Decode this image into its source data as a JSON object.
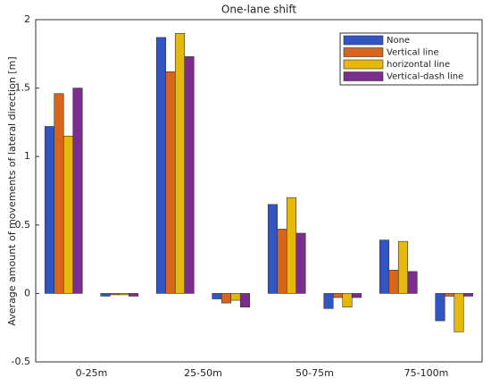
{
  "chart_data": {
    "type": "bar",
    "title": "One-lane shift",
    "y_label": "Average amount of movements of lateral direction [m]",
    "categories": [
      "0-25m",
      null,
      "25-50m",
      null,
      "50-75m",
      null,
      "75-100m",
      null
    ],
    "series": [
      {
        "name": "None",
        "color": "#3355c4",
        "values": [
          1.22,
          -0.02,
          1.87,
          -0.04,
          0.65,
          -0.11,
          0.39,
          -0.2
        ]
      },
      {
        "name": "Vertical line",
        "color": "#d9651b",
        "values": [
          1.46,
          -0.01,
          1.62,
          -0.07,
          0.47,
          -0.03,
          0.17,
          -0.02
        ]
      },
      {
        "name": "horizontal line",
        "color": "#e6b80c",
        "values": [
          1.15,
          -0.01,
          1.9,
          -0.05,
          0.7,
          -0.1,
          0.38,
          -0.28
        ]
      },
      {
        "name": "Vertical-dash line",
        "color": "#7b2e8e",
        "values": [
          1.5,
          -0.02,
          1.73,
          -0.1,
          0.44,
          -0.03,
          0.16,
          -0.02
        ]
      }
    ],
    "ylim": [
      -0.5,
      2
    ],
    "yticks": [
      -0.5,
      0,
      0.5,
      1,
      1.5,
      2
    ],
    "grid": false,
    "legend": "upper right"
  }
}
